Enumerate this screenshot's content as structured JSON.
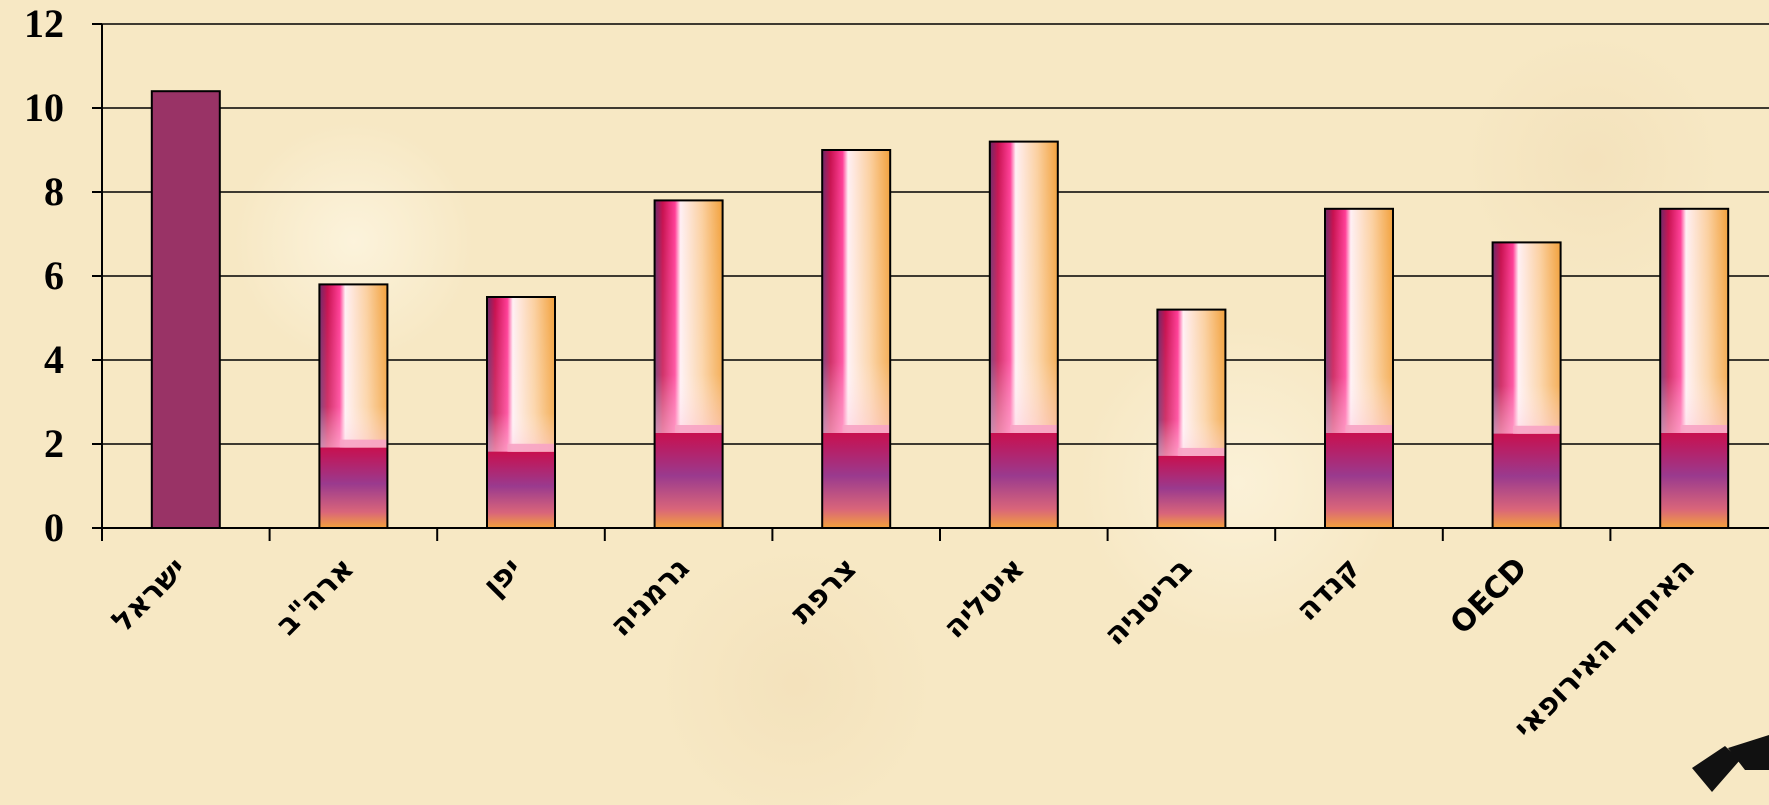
{
  "chart_data": {
    "type": "bar",
    "categories": [
      "ישראל",
      "ארה\"ב",
      "יפן",
      "גרמניה",
      "צרפת",
      "איטליה",
      "בריטניה",
      "קנדה",
      "OECD",
      "האיחוד האירופאי"
    ],
    "values": [
      10.4,
      5.8,
      5.5,
      7.8,
      9.0,
      9.2,
      5.2,
      7.6,
      6.8,
      7.6
    ],
    "ylim": [
      0,
      12
    ],
    "yticks": [
      "0",
      "2",
      "4",
      "6",
      "8",
      "10",
      "12"
    ],
    "grid": true,
    "legend": "none",
    "colors": {
      "highlight": "#993366",
      "magenta": "#c8104f",
      "orange": "#f2a13c",
      "pink_light": "#fde6ee"
    }
  }
}
